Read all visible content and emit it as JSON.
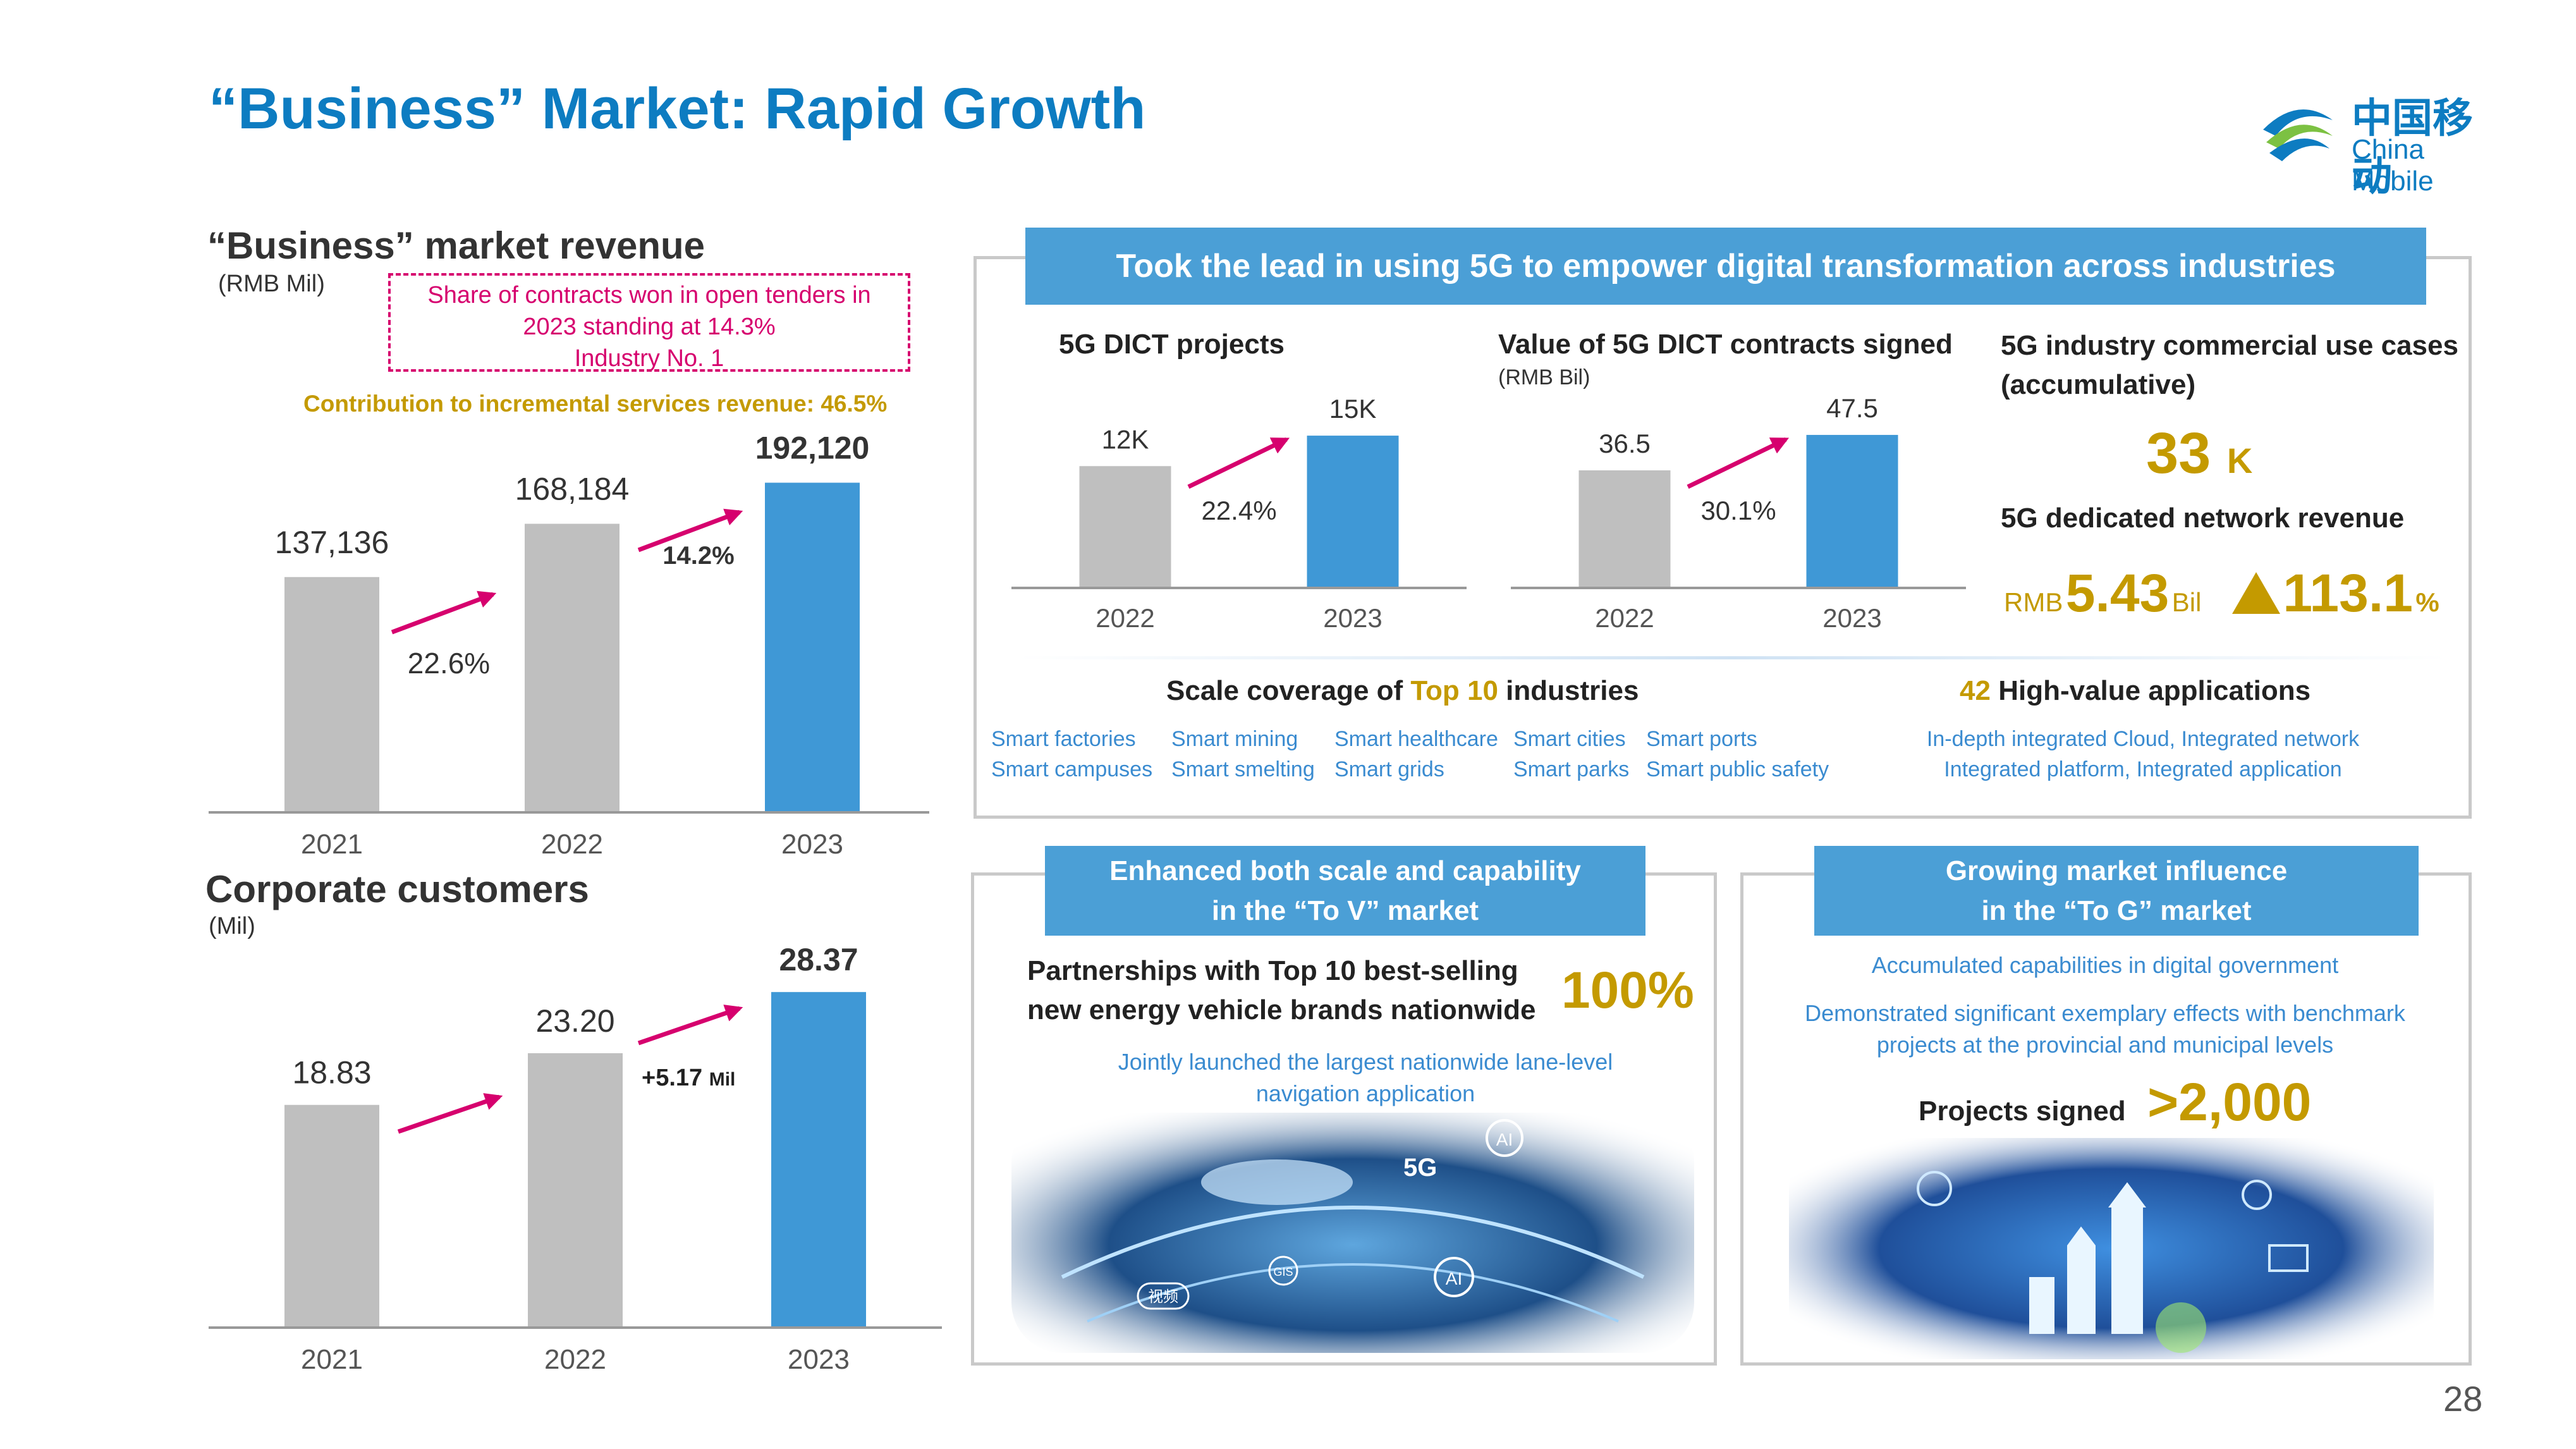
{
  "title": "“Business” Market: Rapid Growth",
  "logo": {
    "cn": "中国移动",
    "en": "China Mobile"
  },
  "page_number": "28",
  "revenue": {
    "heading": "“Business” market revenue",
    "unit": "(RMB Mil)",
    "callout": [
      "Share of contracts won in open tenders in",
      "2023 standing at 14.3%",
      "Industry No. 1"
    ],
    "contribution": "Contribution to incremental services revenue: 46.5%",
    "growth_2022": "22.6%",
    "growth_2023": "14.2%"
  },
  "customers": {
    "heading": "Corporate customers",
    "unit": "(Mil)",
    "increase": "+5.17",
    "increase_unit": "Mil"
  },
  "chart_data": [
    {
      "type": "bar",
      "categories": [
        "2021",
        "2022",
        "2023"
      ],
      "values": [
        137136,
        168184,
        192120
      ],
      "labels": [
        "137,136",
        "168,184",
        "192,120"
      ],
      "ylim": [
        0,
        210000
      ],
      "colors": [
        "#bfbfbf",
        "#bfbfbf",
        "#3f98d6"
      ]
    },
    {
      "type": "bar",
      "categories": [
        "2021",
        "2022",
        "2023"
      ],
      "values": [
        18.83,
        23.2,
        28.37
      ],
      "labels": [
        "18.83",
        "23.20",
        "28.37"
      ],
      "ylim": [
        0,
        31
      ],
      "colors": [
        "#bfbfbf",
        "#bfbfbf",
        "#3f98d6"
      ]
    },
    {
      "type": "bar",
      "categories": [
        "2022",
        "2023"
      ],
      "values": [
        12,
        15
      ],
      "labels": [
        "12K",
        "15K"
      ],
      "ylim": [
        0,
        16.5
      ],
      "colors": [
        "#bfbfbf",
        "#3f98d6"
      ]
    },
    {
      "type": "bar",
      "categories": [
        "2022",
        "2023"
      ],
      "values": [
        36.5,
        47.5
      ],
      "labels": [
        "36.5",
        "47.5"
      ],
      "ylim": [
        0,
        52
      ],
      "colors": [
        "#bfbfbf",
        "#3f98d6"
      ]
    }
  ],
  "top_panel": {
    "banner": "Took the lead in using 5G to empower digital transformation across industries",
    "dict_projects": {
      "heading": "5G DICT projects",
      "growth": "22.4%"
    },
    "dict_value": {
      "heading": "Value of 5G DICT contracts signed",
      "unit": "(RMB Bil)",
      "growth": "30.1%"
    },
    "use_cases": {
      "heading_1": "5G industry commercial use cases",
      "heading_2": "(accumulative)",
      "value": "33",
      "suffix": "K"
    },
    "network_revenue": {
      "heading": "5G dedicated network revenue",
      "prefix": "RMB",
      "value": "5.43",
      "unit": "Bil",
      "growth": "113.1",
      "growth_unit": "%"
    },
    "scale": {
      "prefix": "Scale coverage of ",
      "highlight": "Top 10",
      "suffix": " industries"
    },
    "industries": [
      [
        "Smart factories",
        "Smart mining",
        "Smart healthcare",
        "Smart cities",
        "Smart ports"
      ],
      [
        "Smart campuses",
        "Smart smelting",
        "Smart grids",
        "Smart parks",
        "Smart public safety"
      ]
    ],
    "apps": {
      "count": "42",
      "label": "High-value applications",
      "lines": [
        "In-depth integrated Cloud, Integrated network",
        "Integrated platform, Integrated application"
      ]
    }
  },
  "tov": {
    "banner_1": "Enhanced both scale and capability",
    "banner_2": "in the “To V” market",
    "partnership_1": "Partnerships with Top 10 best-selling",
    "partnership_2": "new energy vehicle brands nationwide",
    "pct": "100%",
    "desc_1": "Jointly launched the largest nationwide lane-level",
    "desc_2": "navigation application",
    "image_labels": [
      "5G",
      "AI",
      "AI",
      "视频",
      "GIS"
    ]
  },
  "tog": {
    "banner_1": "Growing market influence",
    "banner_2": "in the “To G” market",
    "line_1": "Accumulated capabilities in digital government",
    "line_2": "Demonstrated significant exemplary effects with benchmark",
    "line_3": "projects at the provincial and municipal levels",
    "projects_label": "Projects signed",
    "projects_value": ">2,000"
  }
}
